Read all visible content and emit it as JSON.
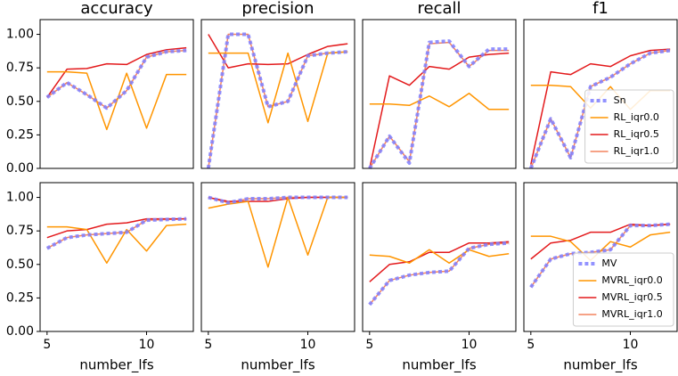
{
  "chart_data": [
    {
      "type": "line",
      "title": "accuracy",
      "x": [
        5,
        6,
        7,
        8,
        9,
        10,
        11,
        12
      ],
      "xlim": [
        4.65,
        12.35
      ],
      "ylim": [
        0,
        1.11
      ],
      "yticks": [
        {
          "value": 0,
          "label": "0.00"
        },
        {
          "value": 0.25,
          "label": "0.25"
        },
        {
          "value": 0.5,
          "label": "0.50"
        },
        {
          "value": 0.75,
          "label": "0.75"
        },
        {
          "value": 1,
          "label": "1.00"
        }
      ],
      "series": [
        {
          "color": "#7f7fff",
          "linestyle": "dotted",
          "values": [
            0.53,
            0.64,
            0.55,
            0.45,
            0.58,
            0.83,
            0.87,
            0.88
          ]
        },
        {
          "color": "#ff9500",
          "values": [
            0.72,
            0.72,
            0.71,
            0.29,
            0.71,
            0.3,
            0.7,
            0.7
          ]
        },
        {
          "color": "#e31a1c",
          "values": [
            0.53,
            0.74,
            0.745,
            0.78,
            0.775,
            0.85,
            0.885,
            0.9
          ]
        },
        {
          "color": "#f4845f",
          "values": [
            0.53,
            0.64,
            0.55,
            0.45,
            0.58,
            0.83,
            0.87,
            0.88
          ]
        }
      ]
    },
    {
      "type": "line",
      "title": "precision",
      "x": [
        5,
        6,
        7,
        8,
        9,
        10,
        11,
        12
      ],
      "xlim": [
        4.65,
        12.35
      ],
      "ylim": [
        0,
        1.11
      ],
      "series": [
        {
          "color": "#7f7fff",
          "linestyle": "dotted",
          "values": [
            0.0,
            1.0,
            1.0,
            0.46,
            0.5,
            0.84,
            0.86,
            0.87
          ]
        },
        {
          "color": "#ff9500",
          "values": [
            0.86,
            0.86,
            0.86,
            0.34,
            0.86,
            0.35,
            0.86,
            0.87
          ]
        },
        {
          "color": "#e31a1c",
          "values": [
            1.0,
            0.75,
            0.78,
            0.775,
            0.78,
            0.85,
            0.91,
            0.93
          ]
        },
        {
          "color": "#f4845f",
          "values": [
            0.0,
            1.0,
            1.0,
            0.46,
            0.5,
            0.84,
            0.86,
            0.87
          ]
        }
      ]
    },
    {
      "type": "line",
      "title": "recall",
      "x": [
        5,
        6,
        7,
        8,
        9,
        10,
        11,
        12
      ],
      "xlim": [
        4.65,
        12.35
      ],
      "ylim": [
        0,
        1.11
      ],
      "series": [
        {
          "color": "#7f7fff",
          "linestyle": "dotted",
          "values": [
            0.0,
            0.24,
            0.04,
            0.94,
            0.95,
            0.76,
            0.89,
            0.89
          ]
        },
        {
          "color": "#ff9500",
          "values": [
            0.48,
            0.48,
            0.47,
            0.54,
            0.46,
            0.56,
            0.44,
            0.44
          ]
        },
        {
          "color": "#e31a1c",
          "values": [
            0.0,
            0.69,
            0.62,
            0.76,
            0.74,
            0.83,
            0.85,
            0.86
          ]
        },
        {
          "color": "#f4845f",
          "values": [
            0.0,
            0.24,
            0.05,
            0.93,
            0.94,
            0.76,
            0.88,
            0.88
          ]
        }
      ]
    },
    {
      "type": "line",
      "title": "f1",
      "x": [
        5,
        6,
        7,
        8,
        9,
        10,
        11,
        12
      ],
      "xlim": [
        4.65,
        12.35
      ],
      "ylim": [
        0,
        1.11
      ],
      "legend": "lower right",
      "series": [
        {
          "name": "Sn",
          "color": "#7f7fff",
          "linestyle": "dotted",
          "values": [
            0.0,
            0.37,
            0.08,
            0.61,
            0.68,
            0.78,
            0.86,
            0.88
          ]
        },
        {
          "name": "RL_iqr0.0",
          "color": "#ff9500",
          "values": [
            0.62,
            0.62,
            0.61,
            0.45,
            0.61,
            0.44,
            0.58,
            0.58
          ]
        },
        {
          "name": "RL_iqr0.5",
          "color": "#e31a1c",
          "values": [
            0.03,
            0.72,
            0.7,
            0.78,
            0.76,
            0.84,
            0.88,
            0.89
          ]
        },
        {
          "name": "RL_iqr1.0",
          "color": "#f4845f",
          "values": [
            0.0,
            0.37,
            0.08,
            0.61,
            0.68,
            0.78,
            0.86,
            0.88
          ]
        }
      ]
    },
    {
      "type": "line",
      "xlabel": "number_lfs",
      "x": [
        5,
        6,
        7,
        8,
        9,
        10,
        11,
        12
      ],
      "xlim": [
        4.65,
        12.35
      ],
      "ylim": [
        0,
        1.11
      ],
      "xticks": [
        5,
        10
      ],
      "yticks": [
        {
          "value": 0,
          "label": "0.00"
        },
        {
          "value": 0.25,
          "label": "0.25"
        },
        {
          "value": 0.5,
          "label": "0.50"
        },
        {
          "value": 0.75,
          "label": "0.75"
        },
        {
          "value": 1,
          "label": "1.00"
        }
      ],
      "series": [
        {
          "color": "#7f7fff",
          "linestyle": "dotted",
          "values": [
            0.62,
            0.7,
            0.72,
            0.73,
            0.74,
            0.83,
            0.835,
            0.84
          ]
        },
        {
          "color": "#ff9500",
          "values": [
            0.78,
            0.78,
            0.76,
            0.51,
            0.76,
            0.6,
            0.79,
            0.8
          ]
        },
        {
          "color": "#e31a1c",
          "values": [
            0.7,
            0.75,
            0.76,
            0.8,
            0.81,
            0.84,
            0.84,
            0.84
          ]
        },
        {
          "color": "#f4845f",
          "values": [
            0.62,
            0.7,
            0.72,
            0.73,
            0.74,
            0.83,
            0.835,
            0.84
          ]
        }
      ]
    },
    {
      "type": "line",
      "xlabel": "number_lfs",
      "x": [
        5,
        6,
        7,
        8,
        9,
        10,
        11,
        12
      ],
      "xlim": [
        4.65,
        12.35
      ],
      "ylim": [
        0,
        1.11
      ],
      "xticks": [
        5,
        10
      ],
      "series": [
        {
          "color": "#7f7fff",
          "linestyle": "dotted",
          "values": [
            1.0,
            0.96,
            0.99,
            0.99,
            1.0,
            1.0,
            1.0,
            1.0
          ]
        },
        {
          "color": "#ff9500",
          "values": [
            0.92,
            0.95,
            0.97,
            0.48,
            1.0,
            0.57,
            1.0,
            1.0
          ]
        },
        {
          "color": "#e31a1c",
          "values": [
            1.0,
            0.97,
            0.97,
            0.97,
            0.99,
            1.0,
            1.0,
            1.0
          ]
        },
        {
          "color": "#f4845f",
          "values": [
            1.0,
            0.96,
            0.99,
            0.99,
            1.0,
            1.0,
            1.0,
            1.0
          ]
        }
      ]
    },
    {
      "type": "line",
      "xlabel": "number_lfs",
      "x": [
        5,
        6,
        7,
        8,
        9,
        10,
        11,
        12
      ],
      "xlim": [
        4.65,
        12.35
      ],
      "ylim": [
        0,
        1.11
      ],
      "xticks": [
        5,
        10
      ],
      "series": [
        {
          "color": "#7f7fff",
          "linestyle": "dotted",
          "values": [
            0.2,
            0.38,
            0.42,
            0.44,
            0.45,
            0.62,
            0.65,
            0.66
          ]
        },
        {
          "color": "#ff9500",
          "values": [
            0.57,
            0.56,
            0.51,
            0.61,
            0.51,
            0.61,
            0.56,
            0.58
          ]
        },
        {
          "color": "#e31a1c",
          "values": [
            0.37,
            0.5,
            0.52,
            0.59,
            0.59,
            0.66,
            0.66,
            0.67
          ]
        },
        {
          "color": "#f4845f",
          "values": [
            0.2,
            0.38,
            0.42,
            0.44,
            0.45,
            0.62,
            0.65,
            0.66
          ]
        }
      ]
    },
    {
      "type": "line",
      "xlabel": "number_lfs",
      "x": [
        5,
        6,
        7,
        8,
        9,
        10,
        11,
        12
      ],
      "xlim": [
        4.65,
        12.35
      ],
      "ylim": [
        0,
        1.11
      ],
      "xticks": [
        5,
        10
      ],
      "legend": "lower right",
      "series": [
        {
          "name": "MV",
          "color": "#7f7fff",
          "linestyle": "dotted",
          "values": [
            0.33,
            0.54,
            0.58,
            0.59,
            0.61,
            0.79,
            0.79,
            0.8
          ]
        },
        {
          "name": "MVRL_iqr0.0",
          "color": "#ff9500",
          "values": [
            0.71,
            0.71,
            0.67,
            0.53,
            0.67,
            0.63,
            0.72,
            0.74
          ]
        },
        {
          "name": "MVRL_iqr0.5",
          "color": "#e31a1c",
          "values": [
            0.54,
            0.66,
            0.68,
            0.74,
            0.74,
            0.8,
            0.79,
            0.8
          ]
        },
        {
          "name": "MVRL_iqr1.0",
          "color": "#f4845f",
          "values": [
            0.33,
            0.54,
            0.58,
            0.59,
            0.61,
            0.79,
            0.79,
            0.8
          ]
        }
      ]
    }
  ]
}
